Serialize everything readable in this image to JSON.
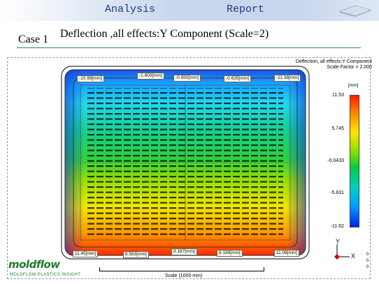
{
  "header": {
    "left": "Analysis",
    "right": "Report"
  },
  "case": {
    "label": "Case 1",
    "title": "Deflection ,all effects:Y Component (Scale=2)"
  },
  "plot": {
    "title_line1": "Deflection, all effects:Y Component",
    "title_line2": "Scale Factor = 2.000",
    "labels_top": [
      "-10.99[mm]",
      "-1.800[mm]",
      "-0.950[mm]",
      "-0.635[mm]",
      "-11.38[mm]"
    ],
    "labels_bottom": [
      "11.45[mm]",
      "8.583[mm]",
      "9.167[mm]",
      "8.189[mm]",
      "11.08[mm]"
    ],
    "legend": {
      "unit": "[mm]",
      "ticks": [
        "11.53",
        "5.745",
        "-0.0433",
        "-5.831",
        "-11.62"
      ]
    },
    "scale_label": "Scale (1000 mm)",
    "axes": {
      "y": "Y",
      "x": "X",
      "z1": "0",
      "z2": "0",
      "z3": "0"
    }
  },
  "logo": {
    "name": "moldflow",
    "tagline": "MOLDFLOW PLASTICS INSIGHT"
  },
  "colors": {
    "header": "#c9d7ee",
    "brand": "#1d7a2b",
    "max": "#ff1a00",
    "min": "#0022ee"
  }
}
